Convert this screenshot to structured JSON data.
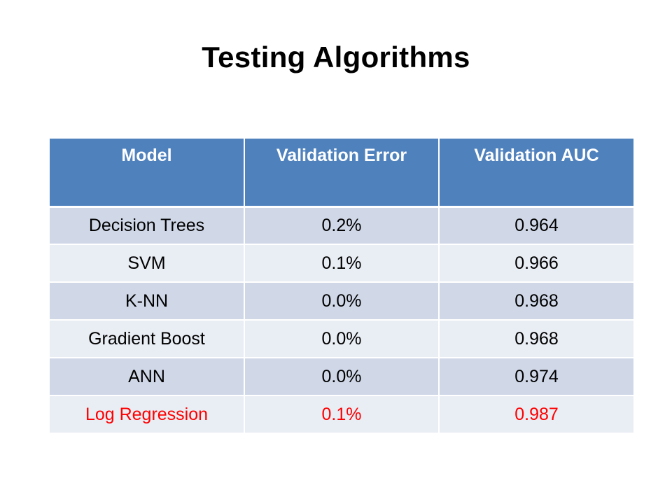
{
  "slide": {
    "title": "Testing Algorithms"
  },
  "table": {
    "headers": [
      "Model",
      "Validation Error",
      "Validation AUC"
    ],
    "rows": [
      [
        "Decision Trees",
        "0.2%",
        "0.964"
      ],
      [
        "SVM",
        "0.1%",
        "0.966"
      ],
      [
        "K-NN",
        "0.0%",
        "0.968"
      ],
      [
        "Gradient Boost",
        "0.0%",
        "0.968"
      ],
      [
        "ANN",
        "0.0%",
        "0.974"
      ],
      [
        "Log Regression",
        "0.1%",
        "0.987"
      ]
    ],
    "highlighted_row": "Log Regression"
  },
  "colors": {
    "header_bg": "#4f81bd",
    "header_text": "#ffffff",
    "row_band_dark": "#d0d8e8",
    "row_band_light": "#e9edf4",
    "highlight_text": "#ff0000"
  }
}
